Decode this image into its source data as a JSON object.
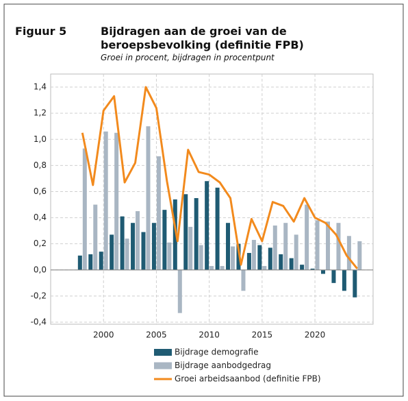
{
  "chart_data": {
    "type": "bar",
    "figure_label": "Figuur 5",
    "title": "Bijdragen aan de groei van de beroepsbevolking (definitie FPB)",
    "subtitle": "Groei in procent, bijdragen in procentpunt",
    "x": [
      1998,
      1999,
      2000,
      2001,
      2002,
      2003,
      2004,
      2005,
      2006,
      2007,
      2008,
      2009,
      2010,
      2011,
      2012,
      2013,
      2014,
      2015,
      2016,
      2017,
      2018,
      2019,
      2020,
      2021,
      2022,
      2023,
      2024
    ],
    "xlim": [
      1995,
      2025.5
    ],
    "xticks": [
      2000,
      2005,
      2010,
      2015,
      2020
    ],
    "ylim": [
      -0.4,
      1.5
    ],
    "yticks": [
      {
        "value": -0.4,
        "label": "-0,4"
      },
      {
        "value": -0.2,
        "label": "-0,2"
      },
      {
        "value": 0,
        "label": "0,0"
      },
      {
        "value": 0.2,
        "label": "0,2"
      },
      {
        "value": 0.4,
        "label": "0,4"
      },
      {
        "value": 0.6,
        "label": "0,6"
      },
      {
        "value": 0.8,
        "label": "0,8"
      },
      {
        "value": 1.0,
        "label": "1,0"
      },
      {
        "value": 1.2,
        "label": "1,2"
      },
      {
        "value": 1.4,
        "label": "1,4"
      }
    ],
    "grid": true,
    "series": [
      {
        "name": "Bijdrage demografie",
        "type": "bar",
        "color": "#1f5b73",
        "values": [
          0.11,
          0.12,
          0.14,
          0.27,
          0.41,
          0.36,
          0.29,
          0.36,
          0.46,
          0.54,
          0.58,
          0.55,
          0.68,
          0.63,
          0.36,
          0.2,
          0.13,
          0.19,
          0.17,
          0.12,
          0.09,
          0.04,
          0.01,
          -0.03,
          -0.1,
          -0.16,
          -0.21
        ]
      },
      {
        "name": "Bijdrage aanbodgedrag",
        "type": "bar",
        "color": "#a9b6c3",
        "values": [
          0.93,
          0.5,
          1.06,
          1.05,
          0.24,
          0.45,
          1.1,
          0.87,
          0.21,
          -0.33,
          0.33,
          0.19,
          0.03,
          0.03,
          0.18,
          -0.16,
          0.23,
          0.03,
          0.34,
          0.36,
          0.27,
          0.5,
          0.38,
          0.37,
          0.36,
          0.26,
          0.22
        ]
      },
      {
        "name": "Groei arbeidsaanbod (definitie FPB)",
        "type": "line",
        "color": "#f28a1d",
        "values": [
          1.05,
          0.65,
          1.22,
          1.33,
          0.67,
          0.82,
          1.4,
          1.24,
          0.68,
          0.22,
          0.92,
          0.75,
          0.73,
          0.67,
          0.55,
          0.04,
          0.39,
          0.22,
          0.52,
          0.49,
          0.37,
          0.55,
          0.4,
          0.36,
          0.27,
          0.11,
          0.01
        ]
      }
    ]
  }
}
